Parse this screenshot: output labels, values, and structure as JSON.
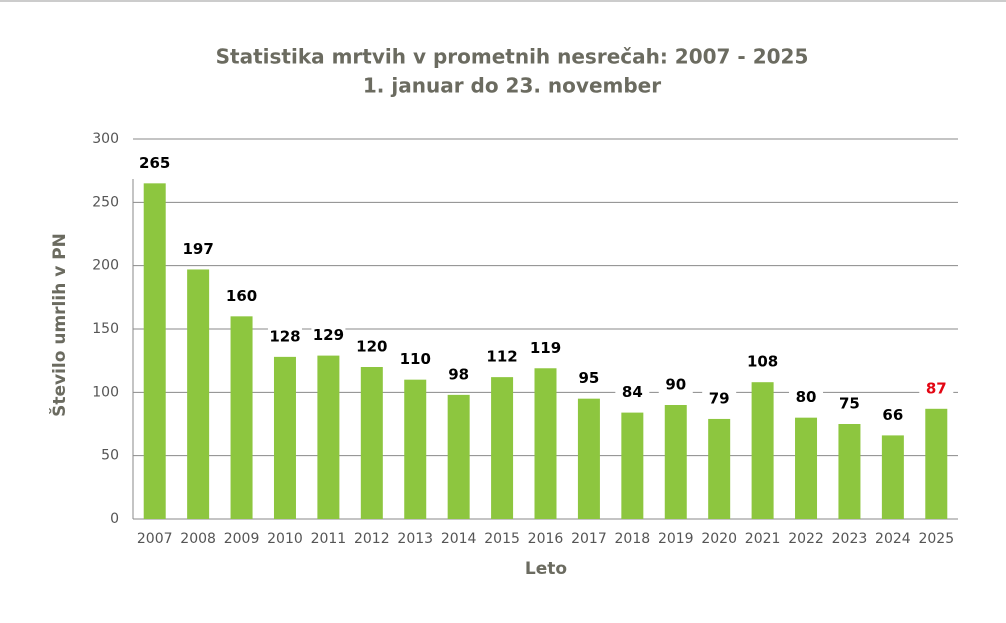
{
  "chart_data": {
    "type": "bar",
    "title": "Statistika mrtvih v prometnih nesrečah: 2007 - 2025",
    "subtitle": "1. januar do 23. november",
    "x_label": "Leto",
    "y_label": "Število umrlih v PN",
    "categories": [
      "2007",
      "2008",
      "2009",
      "2010",
      "2011",
      "2012",
      "2013",
      "2014",
      "2015",
      "2016",
      "2017",
      "2018",
      "2019",
      "2020",
      "2021",
      "2022",
      "2023",
      "2024",
      "2025"
    ],
    "values": [
      265,
      197,
      160,
      128,
      129,
      120,
      110,
      98,
      112,
      119,
      95,
      84,
      90,
      79,
      108,
      80,
      75,
      66,
      87
    ],
    "value_label_colors": [
      "#000000",
      "#000000",
      "#000000",
      "#000000",
      "#000000",
      "#000000",
      "#000000",
      "#000000",
      "#000000",
      "#000000",
      "#000000",
      "#000000",
      "#000000",
      "#000000",
      "#000000",
      "#000000",
      "#000000",
      "#000000",
      "#e30613"
    ],
    "color": "#8dc63f",
    "ylim": [
      0,
      300
    ],
    "yticks": [
      0,
      50,
      100,
      150,
      200,
      250,
      300
    ],
    "grid": true
  }
}
